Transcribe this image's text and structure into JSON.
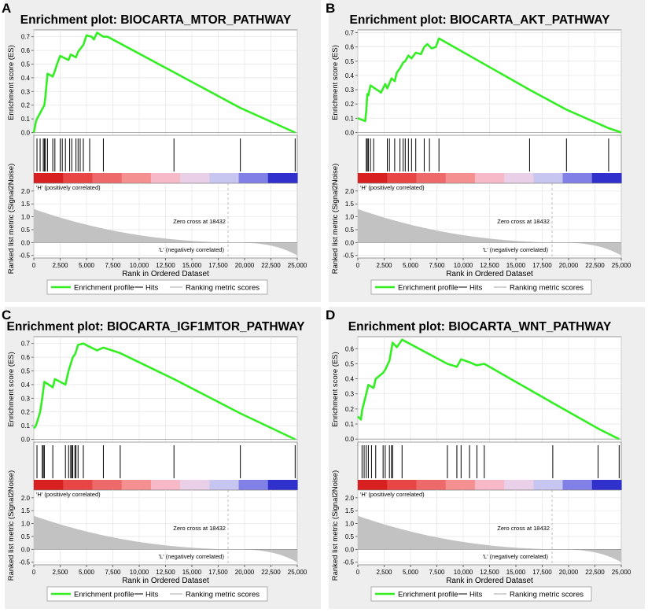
{
  "chart_data": [
    {
      "type": "line",
      "panel_label": "A",
      "title": "Enrichment plot: BIOCARTA_MTOR_PATHWAY",
      "es_ylabel": "Enrichment score (ES)",
      "es_ylim": [
        -0.02,
        0.75
      ],
      "es_ticks": [
        "0.0",
        "0.1",
        "0.2",
        "0.3",
        "0.4",
        "0.5",
        "0.6",
        "0.7"
      ],
      "es_tick_values": [
        0,
        0.1,
        0.2,
        0.3,
        0.4,
        0.5,
        0.6,
        0.7
      ],
      "hits": [
        300,
        600,
        900,
        1000,
        1100,
        1300,
        1800,
        2000,
        2500,
        2700,
        3000,
        3400,
        3600,
        4000,
        4200,
        4400,
        4700,
        5300,
        6600,
        13300,
        19600,
        24800
      ],
      "es_curve": [
        [
          0,
          0
        ],
        [
          200,
          0.08
        ],
        [
          300,
          0.1
        ],
        [
          1000,
          0.2
        ],
        [
          1100,
          0.26
        ],
        [
          1300,
          0.43
        ],
        [
          1800,
          0.41
        ],
        [
          2000,
          0.45
        ],
        [
          2200,
          0.5
        ],
        [
          2500,
          0.56
        ],
        [
          3300,
          0.53
        ],
        [
          3500,
          0.57
        ],
        [
          4000,
          0.55
        ],
        [
          4200,
          0.59
        ],
        [
          4500,
          0.62
        ],
        [
          4700,
          0.64
        ],
        [
          5000,
          0.71
        ],
        [
          5500,
          0.7
        ],
        [
          5700,
          0.68
        ],
        [
          6000,
          0.73
        ],
        [
          6600,
          0.7
        ],
        [
          7000,
          0.7
        ],
        [
          13300,
          0.44
        ],
        [
          19600,
          0.18
        ],
        [
          24800,
          0
        ]
      ],
      "metric_ylabel": "Ranked list metric (Signal2Noise)",
      "metric_ylim": [
        -0.6,
        2.3
      ],
      "metric_ticks": [
        "-0.5",
        "0.0",
        "0.5",
        "1.0",
        "1.5",
        "2.0"
      ],
      "metric_tick_values": [
        -0.5,
        0,
        0.5,
        1.0,
        1.5,
        2.0
      ],
      "metric_start": 1.3,
      "metric_end": -0.5,
      "zero_cross_label": "Zero cross at 18432",
      "zero_cross": 18432,
      "pos_label": "'H' (positively correlated)",
      "neg_label": "'L' (negatively correlated)",
      "xlabel": "Rank in Ordered Dataset",
      "xlim": [
        0,
        25000
      ],
      "x_ticks": [
        "0",
        "2,500",
        "5,000",
        "7,500",
        "10,000",
        "12,500",
        "15,000",
        "17,500",
        "20,000",
        "22,500",
        "25,000"
      ],
      "x_tick_values": [
        0,
        2500,
        5000,
        7500,
        10000,
        12500,
        15000,
        17500,
        20000,
        22500,
        25000
      ],
      "legend": [
        "Enrichment profile",
        "Hits",
        "Ranking metric scores"
      ]
    },
    {
      "type": "line",
      "panel_label": "B",
      "title": "Enrichment plot: BIOCARTA_AKT_PATHWAY",
      "es_ylabel": "Enrichment score (ES)",
      "es_ylim": [
        -0.02,
        0.72
      ],
      "es_ticks": [
        "0.0",
        "0.1",
        "0.2",
        "0.3",
        "0.4",
        "0.5",
        "0.6",
        "0.7"
      ],
      "es_tick_values": [
        0,
        0.1,
        0.2,
        0.3,
        0.4,
        0.5,
        0.6,
        0.7
      ],
      "hits": [
        800,
        900,
        1000,
        1200,
        1500,
        2800,
        3000,
        3500,
        4000,
        4300,
        4500,
        4800,
        5100,
        5500,
        6300,
        6800,
        7700,
        16300,
        19800,
        23800
      ],
      "es_curve": [
        [
          0,
          0.1
        ],
        [
          700,
          0.08
        ],
        [
          800,
          0.15
        ],
        [
          900,
          0.27
        ],
        [
          1000,
          0.26
        ],
        [
          1200,
          0.33
        ],
        [
          2200,
          0.28
        ],
        [
          2600,
          0.34
        ],
        [
          2800,
          0.31
        ],
        [
          3200,
          0.38
        ],
        [
          3500,
          0.36
        ],
        [
          3700,
          0.42
        ],
        [
          4000,
          0.45
        ],
        [
          4300,
          0.49
        ],
        [
          4500,
          0.5
        ],
        [
          4800,
          0.54
        ],
        [
          5100,
          0.52
        ],
        [
          5500,
          0.56
        ],
        [
          6000,
          0.55
        ],
        [
          6300,
          0.6
        ],
        [
          6600,
          0.62
        ],
        [
          7000,
          0.59
        ],
        [
          7400,
          0.6
        ],
        [
          7700,
          0.66
        ],
        [
          16300,
          0.3
        ],
        [
          19800,
          0.16
        ],
        [
          23800,
          0.03
        ],
        [
          25000,
          0
        ]
      ],
      "metric_ylabel": "Ranked list metric (Signal2Noise)",
      "metric_ylim": [
        -0.6,
        2.3
      ],
      "metric_ticks": [
        "-0.5",
        "0.0",
        "0.5",
        "1.0",
        "1.5",
        "2.0"
      ],
      "metric_tick_values": [
        -0.5,
        0,
        0.5,
        1.0,
        1.5,
        2.0
      ],
      "metric_start": 1.3,
      "metric_end": -0.5,
      "zero_cross_label": "Zero cross at 18432",
      "zero_cross": 18432,
      "pos_label": "'H' (positively correlated)",
      "neg_label": "'L' (negatively correlated)",
      "xlabel": "Rank in Ordered Dataset",
      "xlim": [
        0,
        25000
      ],
      "x_ticks": [
        "0",
        "2,500",
        "5,000",
        "7,500",
        "10,000",
        "12,500",
        "15,000",
        "17,500",
        "20,000",
        "22,500",
        "25,000"
      ],
      "x_tick_values": [
        0,
        2500,
        5000,
        7500,
        10000,
        12500,
        15000,
        17500,
        20000,
        22500,
        25000
      ],
      "legend": [
        "Enrichment profile",
        "Hits",
        "Ranking metric scores"
      ]
    },
    {
      "type": "line",
      "panel_label": "C",
      "title": "Enrichment plot: BIOCARTA_IGF1MTOR_PATHWAY",
      "es_ylabel": "Enrichment score (ES)",
      "es_ylim": [
        -0.02,
        0.75
      ],
      "es_ticks": [
        "0.0",
        "0.1",
        "0.2",
        "0.3",
        "0.4",
        "0.5",
        "0.6",
        "0.7"
      ],
      "es_tick_values": [
        0,
        0.1,
        0.2,
        0.3,
        0.4,
        0.5,
        0.6,
        0.7
      ],
      "hits": [
        300,
        800,
        900,
        1000,
        1800,
        3000,
        3300,
        3500,
        3600,
        3700,
        3900,
        4000,
        4200,
        4700,
        6600,
        8200,
        13300,
        19600,
        24800
      ],
      "es_curve": [
        [
          0,
          0.08
        ],
        [
          200,
          0.1
        ],
        [
          400,
          0.15
        ],
        [
          600,
          0.2
        ],
        [
          800,
          0.3
        ],
        [
          1000,
          0.42
        ],
        [
          1800,
          0.38
        ],
        [
          2000,
          0.44
        ],
        [
          3000,
          0.4
        ],
        [
          3300,
          0.5
        ],
        [
          3500,
          0.55
        ],
        [
          3700,
          0.6
        ],
        [
          3900,
          0.62
        ],
        [
          4000,
          0.64
        ],
        [
          4200,
          0.69
        ],
        [
          4700,
          0.7
        ],
        [
          5200,
          0.68
        ],
        [
          6000,
          0.65
        ],
        [
          6600,
          0.67
        ],
        [
          8200,
          0.63
        ],
        [
          13300,
          0.44
        ],
        [
          19600,
          0.19
        ],
        [
          24800,
          0
        ]
      ],
      "metric_ylabel": "Ranked list metric (Signal2Noise)",
      "metric_ylim": [
        -0.6,
        2.3
      ],
      "metric_ticks": [
        "-0.5",
        "0.0",
        "0.5",
        "1.0",
        "1.5",
        "2.0"
      ],
      "metric_tick_values": [
        -0.5,
        0,
        0.5,
        1.0,
        1.5,
        2.0
      ],
      "metric_start": 1.3,
      "metric_end": -0.5,
      "zero_cross_label": "Zero cross at 18432",
      "zero_cross": 18432,
      "pos_label": "'H' (positively correlated)",
      "neg_label": "'L' (negatively correlated)",
      "xlabel": "Rank in Ordered Dataset",
      "xlim": [
        0,
        25000
      ],
      "x_ticks": [
        "0",
        "2,500",
        "5,000",
        "7,500",
        "10,000",
        "12,500",
        "15,000",
        "17,500",
        "20,000",
        "22,500",
        "25,000"
      ],
      "x_tick_values": [
        0,
        2500,
        5000,
        7500,
        10000,
        12500,
        15000,
        17500,
        20000,
        22500,
        25000
      ],
      "legend": [
        "Enrichment profile",
        "Hits",
        "Ranking metric scores"
      ]
    },
    {
      "type": "line",
      "panel_label": "D",
      "title": "Enrichment plot: BIOCARTA_WNT_PATHWAY",
      "es_ylabel": "Enrichment score (ES)",
      "es_ylim": [
        -0.02,
        0.68
      ],
      "es_ticks": [
        "0.0",
        "0.1",
        "0.2",
        "0.3",
        "0.4",
        "0.5",
        "0.6"
      ],
      "es_tick_values": [
        0,
        0.1,
        0.2,
        0.3,
        0.4,
        0.5,
        0.6
      ],
      "hits": [
        400,
        600,
        800,
        1000,
        1300,
        1700,
        2400,
        2600,
        3000,
        3200,
        3300,
        4200,
        8500,
        9400,
        9800,
        10600,
        11300,
        12000,
        18500,
        22800,
        24800
      ],
      "es_curve": [
        [
          0,
          0.15
        ],
        [
          300,
          0.13
        ],
        [
          400,
          0.19
        ],
        [
          800,
          0.3
        ],
        [
          1000,
          0.36
        ],
        [
          1500,
          0.34
        ],
        [
          1700,
          0.4
        ],
        [
          2400,
          0.44
        ],
        [
          2600,
          0.46
        ],
        [
          3000,
          0.52
        ],
        [
          3200,
          0.6
        ],
        [
          3300,
          0.64
        ],
        [
          3700,
          0.61
        ],
        [
          4200,
          0.66
        ],
        [
          8500,
          0.5
        ],
        [
          9400,
          0.48
        ],
        [
          9800,
          0.53
        ],
        [
          10600,
          0.51
        ],
        [
          11300,
          0.49
        ],
        [
          12000,
          0.5
        ],
        [
          18500,
          0.24
        ],
        [
          22800,
          0.07
        ],
        [
          24800,
          0
        ]
      ],
      "metric_ylabel": "Ranked list metric (Signal2Noise)",
      "metric_ylim": [
        -0.6,
        2.3
      ],
      "metric_ticks": [
        "-0.5",
        "0.0",
        "0.5",
        "1.0",
        "1.5",
        "2.0"
      ],
      "metric_tick_values": [
        -0.5,
        0,
        0.5,
        1.0,
        1.5,
        2.0
      ],
      "metric_start": 1.3,
      "metric_end": -0.5,
      "zero_cross_label": "Zero cross at 18432",
      "zero_cross": 18432,
      "pos_label": "'H' (positively correlated)",
      "neg_label": "'L' (negatively correlated)",
      "xlabel": "Rank in Ordered Dataset",
      "xlim": [
        0,
        25000
      ],
      "x_ticks": [
        "0",
        "2,500",
        "5,000",
        "7,500",
        "10,000",
        "12,500",
        "15,000",
        "17,500",
        "20,000",
        "22,500",
        "25,000"
      ],
      "x_tick_values": [
        0,
        2500,
        5000,
        7500,
        10000,
        12500,
        15000,
        17500,
        20000,
        22500,
        25000
      ],
      "legend": [
        "Enrichment profile",
        "Hits",
        "Ranking metric scores"
      ]
    }
  ],
  "colors": {
    "es_line": "#33ee22",
    "hit_line": "#000000",
    "metric_fill": "#c2c2c2",
    "frame_bg": "#eeeeee",
    "pos_text": "#cc2020",
    "neg_text": "#2020bb",
    "heat": [
      "#d82020",
      "#e84545",
      "#ee6a6a",
      "#f49090",
      "#f7b9c8",
      "#e9d0e8",
      "#c6c6f0",
      "#8080e6",
      "#3030cc"
    ]
  }
}
